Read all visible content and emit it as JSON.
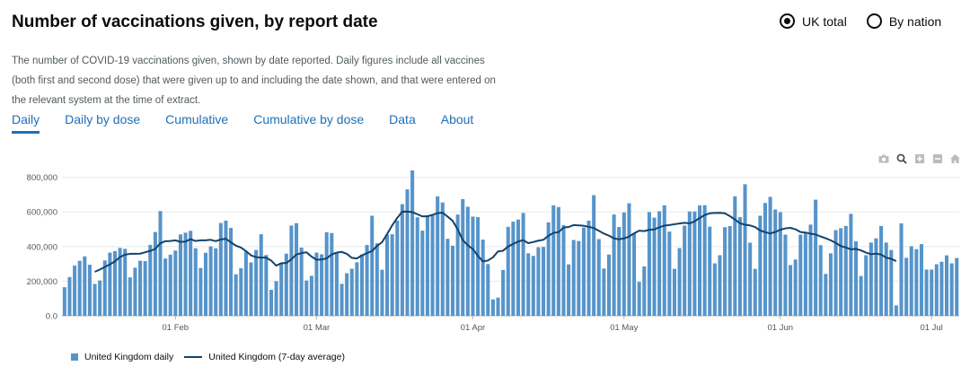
{
  "title": "Number of vaccinations given, by report date",
  "radios": [
    {
      "label": "UK total",
      "checked": true
    },
    {
      "label": "By nation",
      "checked": false
    }
  ],
  "description": "The number of COVID-19 vaccinations given, shown by date reported. Daily figures include all vaccines (both first and second dose) that were given up to and including the date shown, and that were entered on the relevant system at the time of extract.",
  "tabs": [
    {
      "label": "Daily",
      "active": true
    },
    {
      "label": "Daily by dose",
      "active": false
    },
    {
      "label": "Cumulative",
      "active": false
    },
    {
      "label": "Cumulative by dose",
      "active": false
    },
    {
      "label": "Data",
      "active": false
    },
    {
      "label": "About",
      "active": false
    }
  ],
  "toolbar": [
    "camera-icon",
    "zoom-icon",
    "zoom-in-icon",
    "zoom-out-icon",
    "home-icon"
  ],
  "colors": {
    "bar": "#5694ca",
    "line": "#12436d",
    "accent": "#1d70b8"
  },
  "chart_data": {
    "type": "bar",
    "start_date": "2021-01-10",
    "ylim": [
      0,
      850000
    ],
    "y_ticks": [
      "0.0",
      "200,000",
      "400,000",
      "600,000",
      "800,000"
    ],
    "y_tick_values": [
      0,
      200000,
      400000,
      600000,
      800000
    ],
    "x_ticks": [
      {
        "label": "01 Feb",
        "date": "2021-02-01"
      },
      {
        "label": "01 Mar",
        "date": "2021-03-01"
      },
      {
        "label": "01 Apr",
        "date": "2021-04-01"
      },
      {
        "label": "01 May",
        "date": "2021-05-01"
      },
      {
        "label": "01 Jun",
        "date": "2021-06-01"
      },
      {
        "label": "01 Jul",
        "date": "2021-07-01"
      }
    ],
    "series": [
      {
        "name": "United Kingdom daily",
        "type": "bar",
        "values": [
          165000,
          224000,
          290000,
          318000,
          343000,
          295000,
          184000,
          204000,
          320000,
          365000,
          374000,
          392000,
          387000,
          222000,
          278000,
          318000,
          316000,
          410000,
          484000,
          605000,
          331000,
          353000,
          377000,
          470000,
          480000,
          491000,
          390000,
          276000,
          364000,
          401000,
          390000,
          536000,
          550000,
          508000,
          240000,
          275000,
          371000,
          308000,
          380000,
          471000,
          351000,
          150000,
          200000,
          301000,
          359000,
          521000,
          535000,
          394000,
          204000,
          231000,
          365000,
          355000,
          483000,
          478000,
          368000,
          185000,
          246000,
          272000,
          309000,
          354000,
          409000,
          578000,
          419000,
          266000,
          470000,
          471000,
          550000,
          645000,
          730000,
          840000,
          569000,
          492000,
          580000,
          580000,
          690000,
          655000,
          445000,
          405000,
          585000,
          674000,
          630000,
          573000,
          570000,
          440000,
          299000,
          95000,
          105000,
          265000,
          514000,
          544000,
          556000,
          594000,
          361000,
          346000,
          396000,
          398000,
          540000,
          638000,
          628000,
          523000,
          297000,
          438000,
          432000,
          510000,
          550000,
          697000,
          443000,
          273000,
          354000,
          585000,
          513000,
          597000,
          650000,
          476000,
          196000,
          285000,
          599000,
          567000,
          604000,
          638000,
          486000,
          271000,
          391000,
          521000,
          603000,
          603000,
          638000,
          639000,
          515000,
          303000,
          350000,
          512000,
          518000,
          690000,
          570000,
          760000,
          422000,
          271000,
          578000,
          652000,
          687000,
          614000,
          599000,
          469000,
          293000,
          325000,
          469000,
          476000,
          527000,
          671000,
          408000,
          242000,
          361000,
          495000,
          506000,
          519000,
          589000,
          430000,
          230000,
          350000,
          423000,
          448000,
          519000,
          423000,
          380000,
          60000,
          534000,
          335000,
          402000,
          385000,
          414000,
          267000,
          267000,
          298000,
          312000,
          349000,
          303000,
          334000
        ]
      },
      {
        "name": "United Kingdom (7-day average)",
        "type": "line",
        "values": [
          null,
          null,
          null,
          null,
          null,
          null,
          254000,
          267000,
          282000,
          297000,
          314000,
          339000,
          353000,
          358000,
          358000,
          359000,
          367000,
          375000,
          386000,
          419000,
          431000,
          432000,
          436000,
          427000,
          428000,
          443000,
          432000,
          436000,
          436000,
          439000,
          431000,
          441000,
          445000,
          425000,
          405000,
          394000,
          374000,
          349000,
          339000,
          336000,
          336000,
          319000,
          290000,
          304000,
          305000,
          326000,
          354000,
          362000,
          367000,
          342000,
          324000,
          325000,
          332000,
          354000,
          365000,
          369000,
          358000,
          335000,
          331000,
          349000,
          362000,
          374000,
          403000,
          425000,
          472000,
          522000,
          565000,
          601000,
          602000,
          599000,
          587000,
          574000,
          575000,
          583000,
          593000,
          596000,
          573000,
          549000,
          499000,
          438000,
          407000,
          386000,
          347000,
          314000,
          319000,
          338000,
          372000,
          376000,
          400000,
          415000,
          429000,
          437000,
          420000,
          426000,
          434000,
          439000,
          462000,
          479000,
          483000,
          509000,
          513000,
          524000,
          522000,
          520000,
          514000,
          507000,
          491000,
          475000,
          463000,
          447000,
          442000,
          447000,
          458000,
          476000,
          492000,
          489000,
          497000,
          499000,
          511000,
          521000,
          524000,
          529000,
          533000,
          537000,
          534000,
          545000,
          565000,
          582000,
          592000,
          594000,
          595000,
          592000,
          576000,
          556000,
          535000,
          526000,
          522000,
          513000,
          493000,
          483000,
          476000,
          484000,
          497000,
          505000,
          508000,
          500000,
          484000,
          481000,
          474000,
          470000,
          458000,
          448000,
          436000,
          421000,
          403000,
          395000,
          384000,
          386000,
          378000,
          365000,
          356000,
          359000,
          354000,
          336000,
          329000,
          316000
        ]
      }
    ]
  },
  "legend": [
    {
      "label": "United Kingdom daily"
    },
    {
      "label": "United Kingdom (7-day average)"
    }
  ]
}
